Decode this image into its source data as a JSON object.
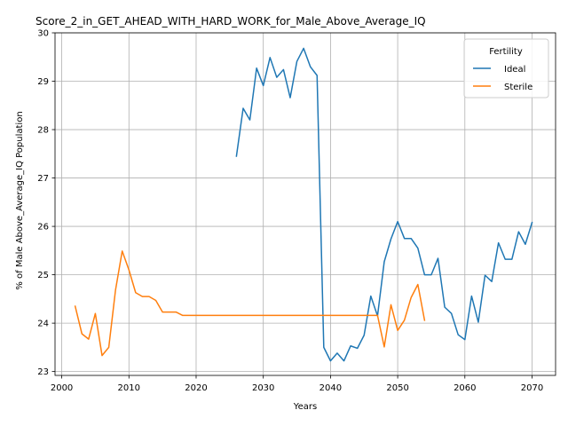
{
  "chart_data": {
    "type": "line",
    "title": "Score_2_in_GET_AHEAD_WITH_HARD_WORK_for_Male_Above_Average_IQ",
    "xlabel": "Years",
    "ylabel": "% of Male Above_Average_IQ Population",
    "xlim": [
      1999,
      2073.5
    ],
    "ylim": [
      22.92,
      30
    ],
    "xticks": [
      2000,
      2010,
      2020,
      2030,
      2040,
      2050,
      2060,
      2070
    ],
    "yticks": [
      23,
      24,
      25,
      26,
      27,
      28,
      29,
      30
    ],
    "grid": true,
    "legend": {
      "title": "Fertility",
      "placement": "top-right"
    },
    "series": [
      {
        "name": "Ideal",
        "color": "#1f77b4",
        "x": [
          2026,
          2027,
          2028,
          2029,
          2030,
          2031,
          2032,
          2033,
          2034,
          2035,
          2036,
          2037,
          2038,
          2039,
          2040,
          2041,
          2042,
          2043,
          2044,
          2045,
          2046,
          2047,
          2048,
          2049,
          2050,
          2051,
          2052,
          2053,
          2054,
          2055,
          2056,
          2057,
          2058,
          2059,
          2060,
          2061,
          2062,
          2063,
          2064,
          2065,
          2066,
          2067,
          2068,
          2069,
          2070
        ],
        "y": [
          27.45,
          28.44,
          28.2,
          29.27,
          28.91,
          29.49,
          29.08,
          29.24,
          28.66,
          29.41,
          29.68,
          29.3,
          29.12,
          23.5,
          23.22,
          23.38,
          23.22,
          23.53,
          23.48,
          23.75,
          24.56,
          24.15,
          25.27,
          25.74,
          26.1,
          25.75,
          25.75,
          25.55,
          25.0,
          25.0,
          25.34,
          24.33,
          24.2,
          23.76,
          23.66,
          24.56,
          24.02,
          24.99,
          24.86,
          25.66,
          25.32,
          25.32,
          25.89,
          25.63,
          26.08
        ]
      },
      {
        "name": "Sterile",
        "color": "#ff7f0e",
        "x": [
          2002,
          2003,
          2004,
          2005,
          2006,
          2007,
          2008,
          2009,
          2010,
          2011,
          2012,
          2013,
          2014,
          2015,
          2016,
          2017,
          2018,
          2019,
          2020,
          2021,
          2022,
          2023,
          2024,
          2025,
          2026,
          2027,
          2028,
          2029,
          2030,
          2031,
          2032,
          2033,
          2034,
          2035,
          2036,
          2037,
          2038,
          2039,
          2040,
          2041,
          2042,
          2043,
          2044,
          2045,
          2046,
          2047,
          2048,
          2049,
          2050,
          2051,
          2052,
          2053,
          2054
        ],
        "y": [
          24.35,
          23.78,
          23.67,
          24.2,
          23.33,
          23.5,
          24.68,
          25.49,
          25.1,
          24.63,
          24.55,
          24.55,
          24.47,
          24.23,
          24.23,
          24.23,
          24.16,
          24.16,
          24.16,
          24.16,
          24.16,
          24.16,
          24.16,
          24.16,
          24.16,
          24.16,
          24.16,
          24.16,
          24.16,
          24.16,
          24.16,
          24.16,
          24.16,
          24.16,
          24.16,
          24.16,
          24.16,
          24.16,
          24.16,
          24.16,
          24.16,
          24.16,
          24.16,
          24.16,
          24.16,
          24.16,
          23.51,
          24.38,
          23.85,
          24.06,
          24.53,
          24.8,
          24.06
        ]
      }
    ]
  }
}
